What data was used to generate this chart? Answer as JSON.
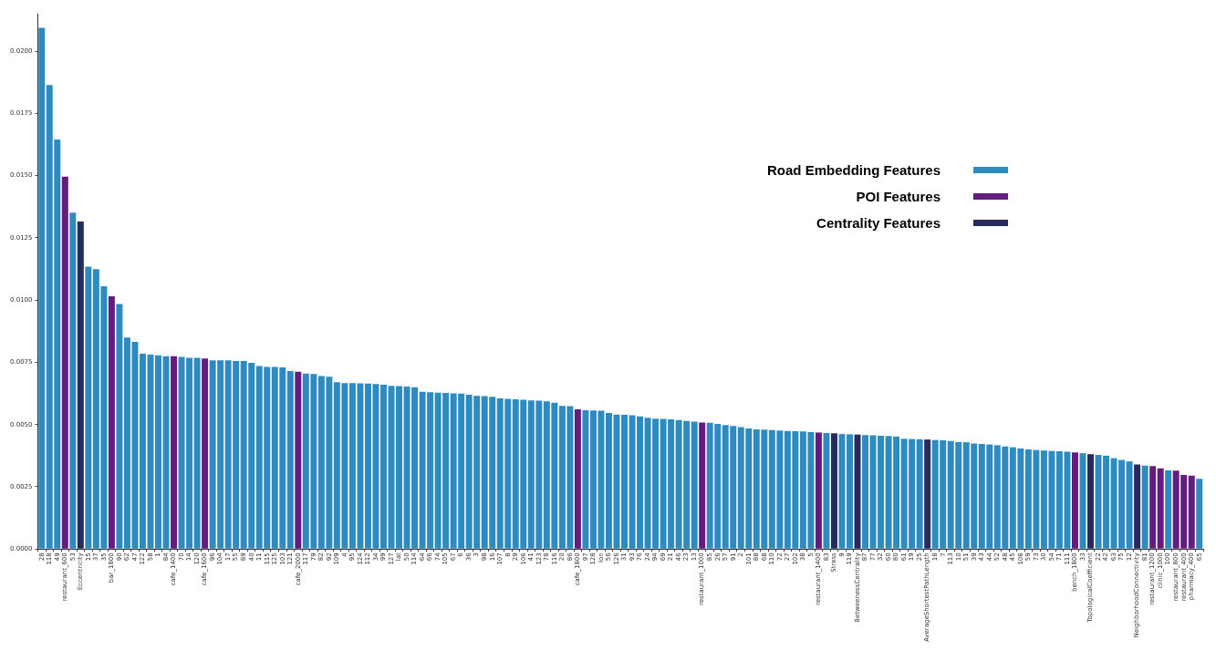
{
  "chart_data": {
    "type": "bar",
    "categories": [
      "28",
      "118",
      "49",
      "restaurant_600",
      "53",
      "Eccentricity",
      "15",
      "37",
      "35",
      "bar_1800",
      "90",
      "62",
      "47",
      "122",
      "58",
      "1",
      "84",
      "cafe_1400",
      "70",
      "14",
      "120",
      "cafe_1600",
      "96",
      "104",
      "17",
      "55",
      "89",
      "40",
      "11",
      "115",
      "125",
      "103",
      "121",
      "cafe_2000",
      "117",
      "79",
      "82",
      "92",
      "109",
      "4",
      "95",
      "124",
      "112",
      "34",
      "99",
      "127",
      "lat",
      "50",
      "114",
      "64",
      "66",
      "74",
      "105",
      "67",
      "6",
      "36",
      "3",
      "98",
      "16",
      "107",
      "8",
      "29",
      "106",
      "41",
      "123",
      "78",
      "116",
      "20",
      "86",
      "cafe_1800",
      "97",
      "128",
      "lon",
      "56",
      "126",
      "31",
      "93",
      "76",
      "24",
      "94",
      "69",
      "21",
      "46",
      "23",
      "13",
      "restaurant_1000",
      "85",
      "26",
      "57",
      "91",
      "2",
      "101",
      "88",
      "68",
      "110",
      "72",
      "27",
      "102",
      "38",
      "5",
      "restaurant_1400",
      "83",
      "Stress",
      "9",
      "119",
      "BetweenessCentrality",
      "87",
      "77",
      "32",
      "60",
      "80",
      "61",
      "19",
      "25",
      "AverageShortestPathLength",
      "18",
      "7",
      "113",
      "10",
      "51",
      "39",
      "43",
      "44",
      "52",
      "48",
      "45",
      "108",
      "59",
      "73",
      "30",
      "54",
      "71",
      "111",
      "bench_1800",
      "33",
      "TopologicalCoefficient",
      "22",
      "42",
      "63",
      "75",
      "12",
      "NeighborhoodConnectivity",
      "81",
      "restaurant_1200",
      "clinic_1000",
      "100",
      "restaurant_800",
      "restaurant_400",
      "pharmacy_400",
      "65"
    ],
    "series": [
      {
        "name": "Road Embedding Features",
        "color": "#2e8bc0",
        "values": [
          0.02094,
          0.01864,
          0.01645,
          null,
          0.01351,
          null,
          0.01134,
          0.01124,
          0.01056,
          null,
          0.00984,
          0.0085,
          0.00832,
          0.00785,
          0.00781,
          0.00778,
          0.00775,
          null,
          0.00772,
          0.00768,
          0.00768,
          null,
          0.00758,
          0.00758,
          0.00758,
          0.00755,
          0.00755,
          0.00748,
          0.00735,
          0.00732,
          0.00732,
          0.0073,
          0.00715,
          null,
          0.00705,
          0.00703,
          0.00695,
          0.00692,
          0.0067,
          0.00667,
          0.00667,
          0.00666,
          0.00665,
          0.00663,
          0.0066,
          0.00656,
          0.00655,
          0.00653,
          0.0065,
          0.00632,
          0.0063,
          0.00628,
          0.00627,
          0.00625,
          0.00624,
          0.0062,
          0.00615,
          0.00614,
          0.00612,
          0.00605,
          0.00603,
          0.00602,
          0.006,
          0.00597,
          0.00596,
          0.00593,
          0.00588,
          0.00575,
          0.00574,
          null,
          0.00558,
          0.00557,
          0.00556,
          0.00547,
          0.0054,
          0.00539,
          0.00537,
          0.00533,
          0.00527,
          0.00524,
          0.00523,
          0.00521,
          0.00518,
          0.00515,
          0.00512,
          null,
          0.00507,
          0.00503,
          0.00498,
          0.00494,
          0.0049,
          0.00484,
          0.00481,
          0.0048,
          0.00478,
          0.00476,
          0.00474,
          0.00473,
          0.00472,
          0.0047,
          null,
          0.00466,
          null,
          0.00462,
          0.00461,
          null,
          0.00458,
          0.00457,
          0.00455,
          0.00454,
          0.00452,
          0.00443,
          0.00442,
          0.00441,
          null,
          0.00438,
          0.00437,
          0.00434,
          0.0043,
          0.00429,
          0.00424,
          0.00422,
          0.0042,
          0.00417,
          0.00412,
          0.00409,
          0.00404,
          0.004,
          0.00398,
          0.00396,
          0.00394,
          0.00393,
          0.00391,
          null,
          0.00385,
          null,
          0.00378,
          0.00375,
          0.00365,
          0.00358,
          0.00352,
          null,
          0.00335,
          null,
          null,
          0.00316,
          null,
          null,
          null,
          0.00282
        ]
      },
      {
        "name": "POI Features",
        "color": "#641d7e",
        "values": [
          null,
          null,
          null,
          0.01496,
          null,
          null,
          null,
          null,
          null,
          0.01015,
          null,
          null,
          null,
          null,
          null,
          null,
          null,
          0.00775,
          null,
          null,
          null,
          0.00765,
          null,
          null,
          null,
          null,
          null,
          null,
          null,
          null,
          null,
          null,
          null,
          0.00712,
          null,
          null,
          null,
          null,
          null,
          null,
          null,
          null,
          null,
          null,
          null,
          null,
          null,
          null,
          null,
          null,
          null,
          null,
          null,
          null,
          null,
          null,
          null,
          null,
          null,
          null,
          null,
          null,
          null,
          null,
          null,
          null,
          null,
          null,
          null,
          0.00561,
          null,
          null,
          null,
          null,
          null,
          null,
          null,
          null,
          null,
          null,
          null,
          null,
          null,
          null,
          null,
          0.00508,
          null,
          null,
          null,
          null,
          null,
          null,
          null,
          null,
          null,
          null,
          null,
          null,
          null,
          null,
          0.00468,
          null,
          null,
          null,
          null,
          null,
          null,
          null,
          null,
          null,
          null,
          null,
          null,
          null,
          null,
          null,
          null,
          null,
          null,
          null,
          null,
          null,
          null,
          null,
          null,
          null,
          null,
          null,
          null,
          null,
          null,
          null,
          null,
          0.00388,
          null,
          null,
          null,
          null,
          null,
          null,
          null,
          null,
          null,
          0.00333,
          0.00324,
          null,
          0.00315,
          0.00298,
          0.00295,
          null
        ]
      },
      {
        "name": "Centrality Features",
        "color": "#262b5c",
        "values": [
          null,
          null,
          null,
          null,
          null,
          0.01316,
          null,
          null,
          null,
          null,
          null,
          null,
          null,
          null,
          null,
          null,
          null,
          null,
          null,
          null,
          null,
          null,
          null,
          null,
          null,
          null,
          null,
          null,
          null,
          null,
          null,
          null,
          null,
          null,
          null,
          null,
          null,
          null,
          null,
          null,
          null,
          null,
          null,
          null,
          null,
          null,
          null,
          null,
          null,
          null,
          null,
          null,
          null,
          null,
          null,
          null,
          null,
          null,
          null,
          null,
          null,
          null,
          null,
          null,
          null,
          null,
          null,
          null,
          null,
          null,
          null,
          null,
          null,
          null,
          null,
          null,
          null,
          null,
          null,
          null,
          null,
          null,
          null,
          null,
          null,
          null,
          null,
          null,
          null,
          null,
          null,
          null,
          null,
          null,
          null,
          null,
          null,
          null,
          null,
          null,
          null,
          null,
          0.00465,
          null,
          null,
          0.0046,
          null,
          null,
          null,
          null,
          null,
          null,
          null,
          null,
          0.0044,
          null,
          null,
          null,
          null,
          null,
          null,
          null,
          null,
          null,
          null,
          null,
          null,
          null,
          null,
          null,
          null,
          null,
          null,
          null,
          null,
          0.00381,
          null,
          null,
          null,
          null,
          null,
          0.0034,
          null,
          null,
          null,
          null,
          null,
          null,
          null,
          null
        ]
      }
    ],
    "ylim": [
      0,
      0.0215
    ],
    "yticks": [
      {
        "value": 0,
        "label": "0.0000"
      },
      {
        "value": 0.0025,
        "label": "0.0025"
      },
      {
        "value": 0.005,
        "label": "0.0050"
      },
      {
        "value": 0.0075,
        "label": "0.0075"
      },
      {
        "value": 0.01,
        "label": "0.0100"
      },
      {
        "value": 0.0125,
        "label": "0.0125"
      },
      {
        "value": 0.015,
        "label": "0.0150"
      },
      {
        "value": 0.0175,
        "label": "0.0175"
      },
      {
        "value": 0.02,
        "label": "0.0200"
      }
    ],
    "grid": false,
    "legend": "top right"
  }
}
